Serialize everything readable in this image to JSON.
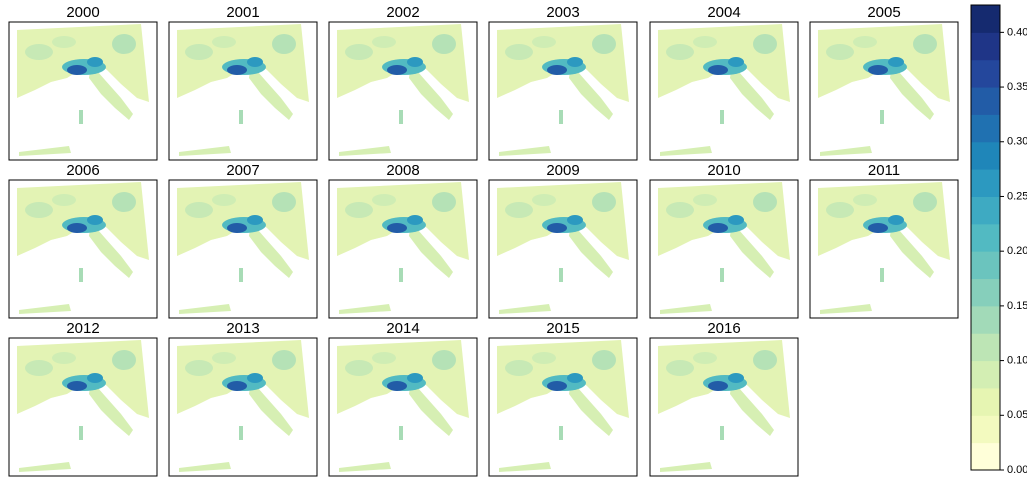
{
  "panels": [
    {
      "title": "2000"
    },
    {
      "title": "2001"
    },
    {
      "title": "2002"
    },
    {
      "title": "2003"
    },
    {
      "title": "2004"
    },
    {
      "title": "2005"
    },
    {
      "title": "2006"
    },
    {
      "title": "2007"
    },
    {
      "title": "2008"
    },
    {
      "title": "2009"
    },
    {
      "title": "2010"
    },
    {
      "title": "2011"
    },
    {
      "title": "2012"
    },
    {
      "title": "2013"
    },
    {
      "title": "2014"
    },
    {
      "title": "2015"
    },
    {
      "title": "2016"
    }
  ],
  "colorbar": {
    "ylim": [
      0,
      0.425
    ],
    "yticks": [
      {
        "value": 0,
        "label": "0.00"
      },
      {
        "value": 0.05,
        "label": "0.05"
      },
      {
        "value": 0.1,
        "label": "0.10"
      },
      {
        "value": 0.15,
        "label": "0.15"
      },
      {
        "value": 0.2,
        "label": "0.20"
      },
      {
        "value": 0.25,
        "label": "0.25"
      },
      {
        "value": 0.3,
        "label": "0.30"
      },
      {
        "value": 0.35,
        "label": "0.35"
      },
      {
        "value": 0.4,
        "label": "0.40"
      }
    ],
    "colors": [
      "#ffffd9",
      "#f3fabf",
      "#e6f5b2",
      "#d3eeb3",
      "#bde5b5",
      "#a2dab8",
      "#86cfbb",
      "#6bc4be",
      "#52bac2",
      "#3eaac2",
      "#2c99c0",
      "#1f86b9",
      "#2071b1",
      "#225ca7",
      "#24479c",
      "#1f3587",
      "#152a6f"
    ]
  }
}
